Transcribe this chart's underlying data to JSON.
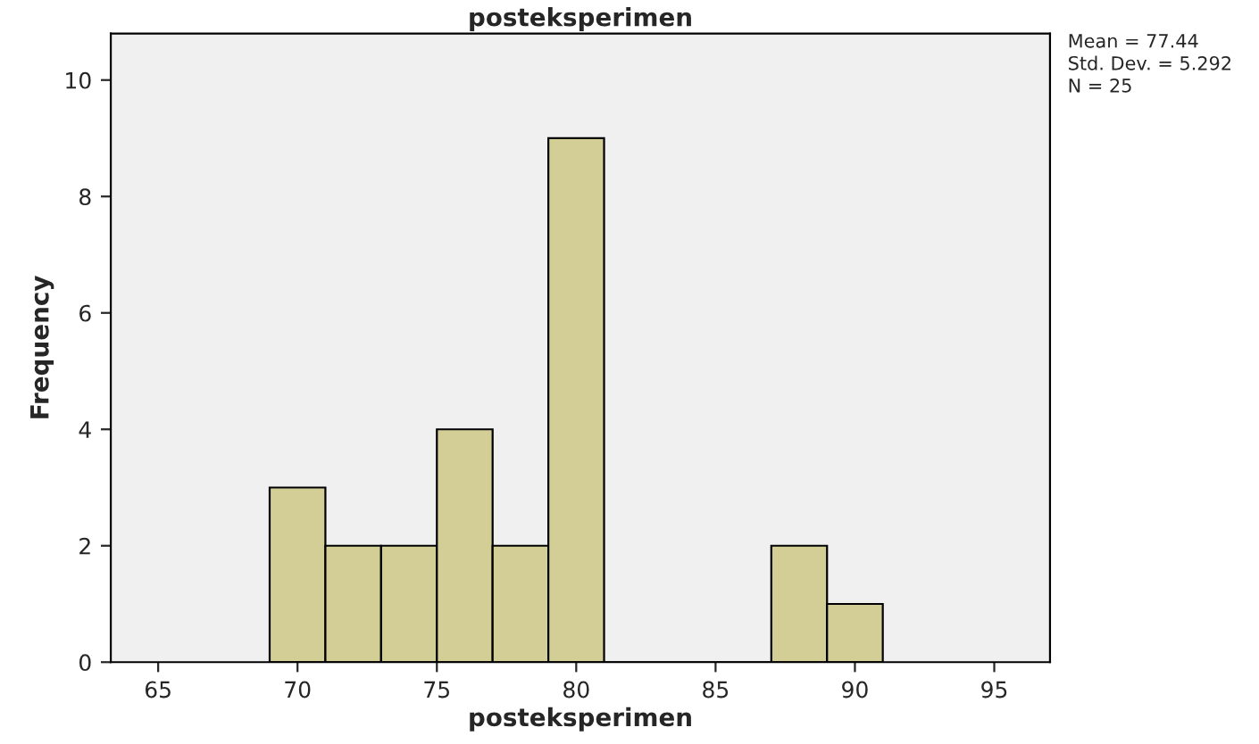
{
  "chart_data": {
    "type": "histogram",
    "title": "posteksperimen",
    "xlabel": "posteksperimen",
    "ylabel": "Frequency",
    "bins": [
      69,
      71,
      73,
      75,
      77,
      79,
      81,
      83,
      85,
      87,
      89,
      91
    ],
    "values": [
      3,
      2,
      2,
      4,
      2,
      9,
      0,
      0,
      0,
      2,
      1
    ],
    "color": "#d3ce96",
    "xlim": [
      63.3,
      97
    ],
    "xticks": [
      65,
      70,
      75,
      80,
      85,
      90,
      95
    ],
    "ylim": [
      0,
      10.8
    ],
    "yticks": [
      0,
      2,
      4,
      6,
      8,
      10
    ],
    "grid": false,
    "legend": false,
    "annotations": [
      "Mean = 77.44",
      "Std. Dev. = 5.292",
      "N = 25"
    ]
  }
}
